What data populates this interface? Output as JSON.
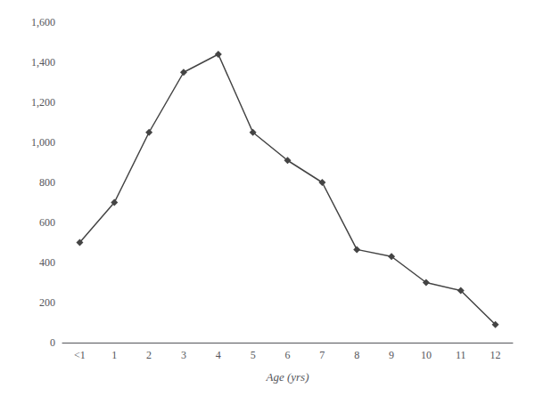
{
  "chart_data": {
    "type": "line",
    "xlabel": "Age (yrs)",
    "categories": [
      "<1",
      "1",
      "2",
      "3",
      "4",
      "5",
      "6",
      "7",
      "8",
      "9",
      "10",
      "11",
      "12"
    ],
    "values": [
      500,
      700,
      1050,
      1350,
      1440,
      1050,
      910,
      800,
      465,
      430,
      300,
      260,
      90
    ],
    "color": "#444444",
    "marker": "diamond",
    "ylim": [
      0,
      1600
    ],
    "yticks": [
      0,
      200,
      400,
      600,
      800,
      {
        "value": 1000,
        "label": "1,000"
      },
      {
        "value": 1200,
        "label": "1,200"
      },
      {
        "value": 1400,
        "label": "1,400"
      },
      {
        "value": 1600,
        "label": "1,600"
      }
    ],
    "grid": false
  }
}
